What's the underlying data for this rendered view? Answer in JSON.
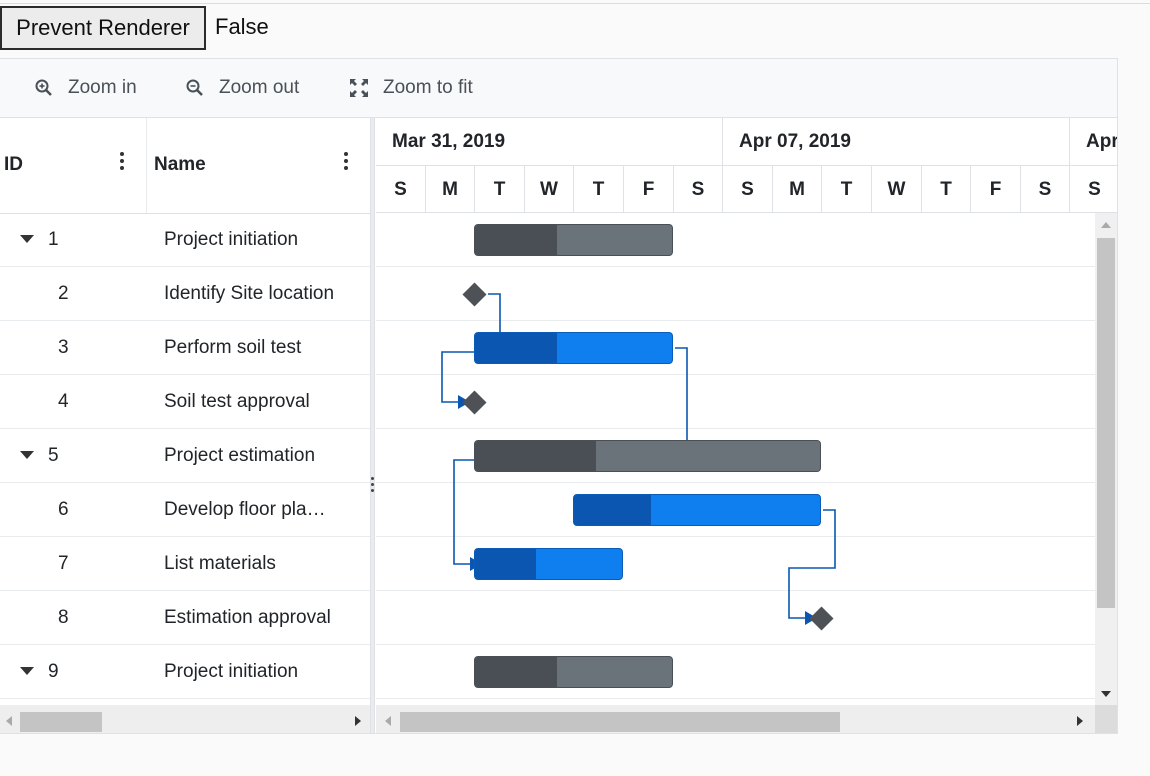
{
  "controls": {
    "prevent_button": "Prevent Renderer",
    "prevent_value": "False"
  },
  "toolbar": [
    {
      "label": "Zoom in",
      "icon": "zoom-in-icon"
    },
    {
      "label": "Zoom out",
      "icon": "zoom-out-icon"
    },
    {
      "label": "Zoom to fit",
      "icon": "zoom-to-fit-icon"
    }
  ],
  "grid": {
    "columns": [
      "ID",
      "Name"
    ],
    "rows": [
      {
        "id": "1",
        "name": "Project initiation",
        "parent": true
      },
      {
        "id": "2",
        "name": "Identify Site location",
        "parent": false
      },
      {
        "id": "3",
        "name": "Perform soil test",
        "parent": false
      },
      {
        "id": "4",
        "name": "Soil test approval",
        "parent": false
      },
      {
        "id": "5",
        "name": "Project estimation",
        "parent": true
      },
      {
        "id": "6",
        "name": "Develop floor pla…",
        "parent": false
      },
      {
        "id": "7",
        "name": "List materials",
        "parent": false
      },
      {
        "id": "8",
        "name": "Estimation approval",
        "parent": false
      },
      {
        "id": "9",
        "name": "Project initiation",
        "parent": true
      }
    ]
  },
  "timeline": {
    "weeks": [
      "Mar 31, 2019",
      "Apr 07, 2019",
      "Apr"
    ],
    "days": [
      "S",
      "M",
      "T",
      "W",
      "T",
      "F",
      "S",
      "S",
      "M",
      "T",
      "W",
      "T",
      "F",
      "S",
      "S"
    ]
  },
  "tasks": [
    {
      "row": 0,
      "type": "parent",
      "start_day": 2,
      "duration_days": 4,
      "progress": 0.41
    },
    {
      "row": 1,
      "type": "milestone",
      "day": 2
    },
    {
      "row": 2,
      "type": "child",
      "start_day": 2,
      "duration_days": 4,
      "progress": 0.41
    },
    {
      "row": 3,
      "type": "milestone",
      "day": 2
    },
    {
      "row": 4,
      "type": "parent",
      "start_day": 2,
      "duration_days": 7,
      "progress": 0.35
    },
    {
      "row": 5,
      "type": "child",
      "start_day": 4,
      "duration_days": 5,
      "progress": 0.31
    },
    {
      "row": 6,
      "type": "child",
      "start_day": 2,
      "duration_days": 3,
      "progress": 0.41
    },
    {
      "row": 7,
      "type": "milestone",
      "day": 9
    },
    {
      "row": 8,
      "type": "parent",
      "start_day": 2,
      "duration_days": 4,
      "progress": 0.41
    }
  ],
  "colors": {
    "accent": "#0f7fef",
    "progress": "#0a56b0",
    "parent": "#6b737a",
    "connector": "#0a56b0"
  }
}
